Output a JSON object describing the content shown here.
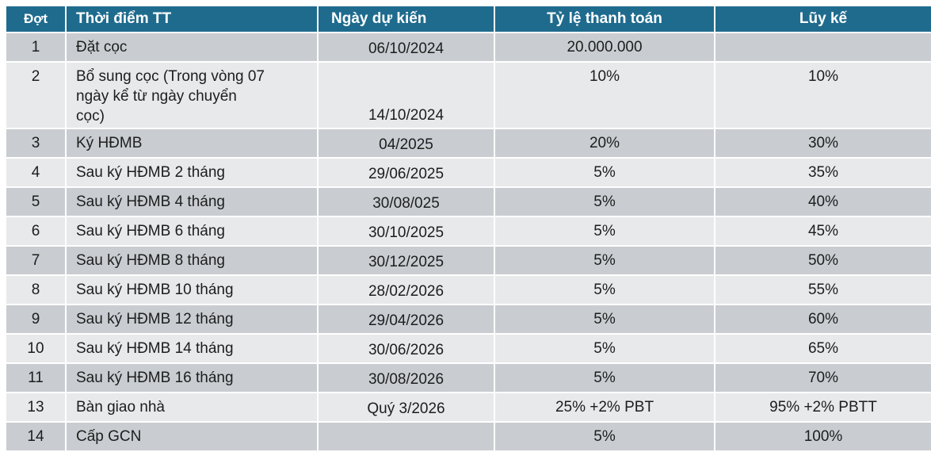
{
  "table": {
    "columns": [
      {
        "key": "dot",
        "label": "Đợt"
      },
      {
        "key": "thoi_diem",
        "label": "Thời điểm TT"
      },
      {
        "key": "ngay",
        "label": "Ngày dự kiến"
      },
      {
        "key": "ty_le",
        "label": "Tỷ lệ thanh toán"
      },
      {
        "key": "luy_ke",
        "label": "Lũy kế"
      }
    ],
    "rows": [
      {
        "dot": "1",
        "thoi_diem": "Đặt cọc",
        "ngay": "06/10/2024",
        "ty_le": "20.000.000",
        "luy_ke": ""
      },
      {
        "dot": "2",
        "thoi_diem": "Bổ sung cọc (Trong vòng 07 ngày kể từ ngày chuyển cọc)",
        "ngay": "14/10/2024",
        "ty_le": "10%",
        "luy_ke": "10%"
      },
      {
        "dot": "3",
        "thoi_diem": "Ký HĐMB",
        "ngay": "04/2025",
        "ty_le": "20%",
        "luy_ke": "30%"
      },
      {
        "dot": "4",
        "thoi_diem": "Sau ký HĐMB 2 tháng",
        "ngay": "29/06/2025",
        "ty_le": "5%",
        "luy_ke": "35%"
      },
      {
        "dot": "5",
        "thoi_diem": "Sau ký HĐMB 4 tháng",
        "ngay": "30/08/025",
        "ty_le": "5%",
        "luy_ke": "40%"
      },
      {
        "dot": "6",
        "thoi_diem": "Sau ký HĐMB 6 tháng",
        "ngay": "30/10/2025",
        "ty_le": "5%",
        "luy_ke": "45%"
      },
      {
        "dot": "7",
        "thoi_diem": "Sau ký HĐMB 8 tháng",
        "ngay": "30/12/2025",
        "ty_le": "5%",
        "luy_ke": "50%"
      },
      {
        "dot": "8",
        "thoi_diem": "Sau ký HĐMB 10 tháng",
        "ngay": "28/02/2026",
        "ty_le": "5%",
        "luy_ke": "55%"
      },
      {
        "dot": "9",
        "thoi_diem": "Sau ký HĐMB 12 tháng",
        "ngay": "29/04/2026",
        "ty_le": "5%",
        "luy_ke": "60%"
      },
      {
        "dot": "10",
        "thoi_diem": "Sau ký HĐMB 14 tháng",
        "ngay": "30/06/2026",
        "ty_le": "5%",
        "luy_ke": "65%"
      },
      {
        "dot": "11",
        "thoi_diem": "Sau ký HĐMB 16 tháng",
        "ngay": "30/08/2026",
        "ty_le": "5%",
        "luy_ke": "70%"
      },
      {
        "dot": "13",
        "thoi_diem": "Bàn giao nhà",
        "ngay": "Quý 3/2026",
        "ty_le": "25% +2% PBT",
        "luy_ke": "95% +2% PBTT"
      },
      {
        "dot": "14",
        "thoi_diem": "Cấp GCN",
        "ngay": "",
        "ty_le": "5%",
        "luy_ke": "100%"
      }
    ],
    "colors": {
      "header_bg": "#1F6B8E",
      "header_text": "#FFFFFF",
      "row_dark": "#C9CDD1",
      "row_light": "#E7E9EB",
      "body_text": "#1D1D1D",
      "separator": "#FFFFFF",
      "page_bg": "#FFFFFF"
    }
  }
}
